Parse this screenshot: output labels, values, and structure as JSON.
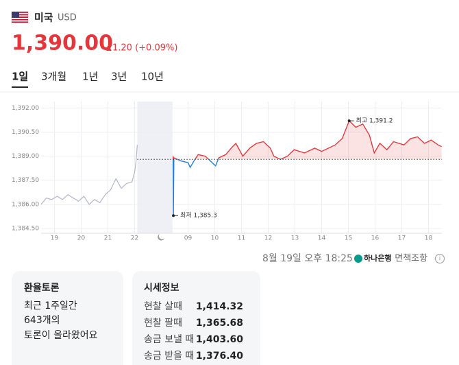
{
  "header": {
    "country": "미국",
    "currency": "USD",
    "price": "1,390.00",
    "change": "1.20 (+0.09%)"
  },
  "tabs": [
    "1일",
    "3개월",
    "1년",
    "3년",
    "10년"
  ],
  "chart_data": {
    "type": "line",
    "xlim": [
      -0.5,
      14.5
    ],
    "ylim": [
      1384.2,
      1392.4
    ],
    "yticks": [
      {
        "value": 1392,
        "label": "1,392.00"
      },
      {
        "value": 1390.5,
        "label": "1,390.50"
      },
      {
        "value": 1389,
        "label": "1,389.00"
      },
      {
        "value": 1387.5,
        "label": "1,387.50"
      },
      {
        "value": 1386,
        "label": "1,386.00"
      },
      {
        "value": 1384.5,
        "label": "1,384.50"
      }
    ],
    "xticks": [
      {
        "value": 0,
        "label": "19"
      },
      {
        "value": 1,
        "label": "20"
      },
      {
        "value": 2,
        "label": "21"
      },
      {
        "value": 3,
        "label": "22"
      },
      {
        "value": 5,
        "label": "09"
      },
      {
        "value": 6,
        "label": "10"
      },
      {
        "value": 7,
        "label": "11"
      },
      {
        "value": 8,
        "label": "12"
      },
      {
        "value": 9,
        "label": "13"
      },
      {
        "value": 10,
        "label": "14"
      },
      {
        "value": 11,
        "label": "15"
      },
      {
        "value": 12,
        "label": "16"
      },
      {
        "value": 13,
        "label": "17"
      },
      {
        "value": 14,
        "label": "18"
      }
    ],
    "grid": true,
    "baseline": 1388.8,
    "shaded_range": [
      3.1,
      4.42
    ],
    "series": [
      {
        "color": "#b3b6cc",
        "x": [
          -0.5,
          -0.3,
          -0.1,
          0.1,
          0.3,
          0.5,
          0.7,
          0.9,
          1.1,
          1.3,
          1.5,
          1.7,
          1.9,
          2.1,
          2.3,
          2.5,
          2.7,
          2.9,
          3.0,
          3.05,
          3.1
        ],
        "values": [
          1386.0,
          1386.4,
          1386.3,
          1386.5,
          1386.3,
          1386.6,
          1386.4,
          1386.2,
          1386.5,
          1386.0,
          1386.3,
          1386.1,
          1386.6,
          1386.9,
          1387.6,
          1387.0,
          1387.3,
          1387.4,
          1388.0,
          1388.6,
          1389.7
        ]
      },
      {
        "color": "#e5393b",
        "down_color": "#1e7ee0",
        "x": [
          4.44,
          4.45,
          4.47,
          4.74,
          5.0,
          5.08,
          5.26,
          5.38,
          5.64,
          6.03,
          6.15,
          6.41,
          6.67,
          6.79,
          7.05,
          7.31,
          7.56,
          7.82,
          8.08,
          8.21,
          8.46,
          8.72,
          8.97,
          9.36,
          9.74,
          10.0,
          10.51,
          10.77,
          11.03,
          11.28,
          11.54,
          11.79,
          11.97,
          12.18,
          12.44,
          12.69,
          13.08,
          13.33,
          13.59,
          13.85,
          14.1,
          14.36,
          14.49
        ],
        "values": [
          1389.0,
          1385.3,
          1388.9,
          1388.7,
          1388.6,
          1388.3,
          1388.8,
          1389.1,
          1389.0,
          1388.4,
          1388.9,
          1389.1,
          1389.6,
          1389.8,
          1389.0,
          1389.5,
          1389.8,
          1389.9,
          1389.5,
          1389.0,
          1388.8,
          1389.0,
          1389.4,
          1389.2,
          1389.5,
          1389.3,
          1389.7,
          1390.1,
          1391.2,
          1390.8,
          1391.0,
          1390.3,
          1389.2,
          1389.8,
          1389.4,
          1389.9,
          1389.7,
          1390.1,
          1390.2,
          1389.8,
          1390.0,
          1389.7,
          1389.6
        ]
      }
    ],
    "annotations": [
      {
        "text": "최고 1,391.2",
        "x": 11.03,
        "y": 1391.2
      },
      {
        "text": "최저 1,385.3",
        "x": 4.45,
        "y": 1385.3
      }
    ]
  },
  "footer": {
    "timestamp": "8월 19일 오후 18:25",
    "bank": "하나은행",
    "disclaimer": "· 면책조항"
  },
  "discussion": {
    "title": "환율토론",
    "lines": [
      "최근 1주일간",
      "643개의",
      "토론이 올라왔어요"
    ]
  },
  "quotes": {
    "title": "시세정보",
    "rows": [
      [
        "현찰 살때",
        "1,414.32"
      ],
      [
        "현찰 팔때",
        "1,365.68"
      ],
      [
        "송금 보낼 때",
        "1,403.60"
      ],
      [
        "송금 받을 때",
        "1,376.40"
      ]
    ]
  }
}
